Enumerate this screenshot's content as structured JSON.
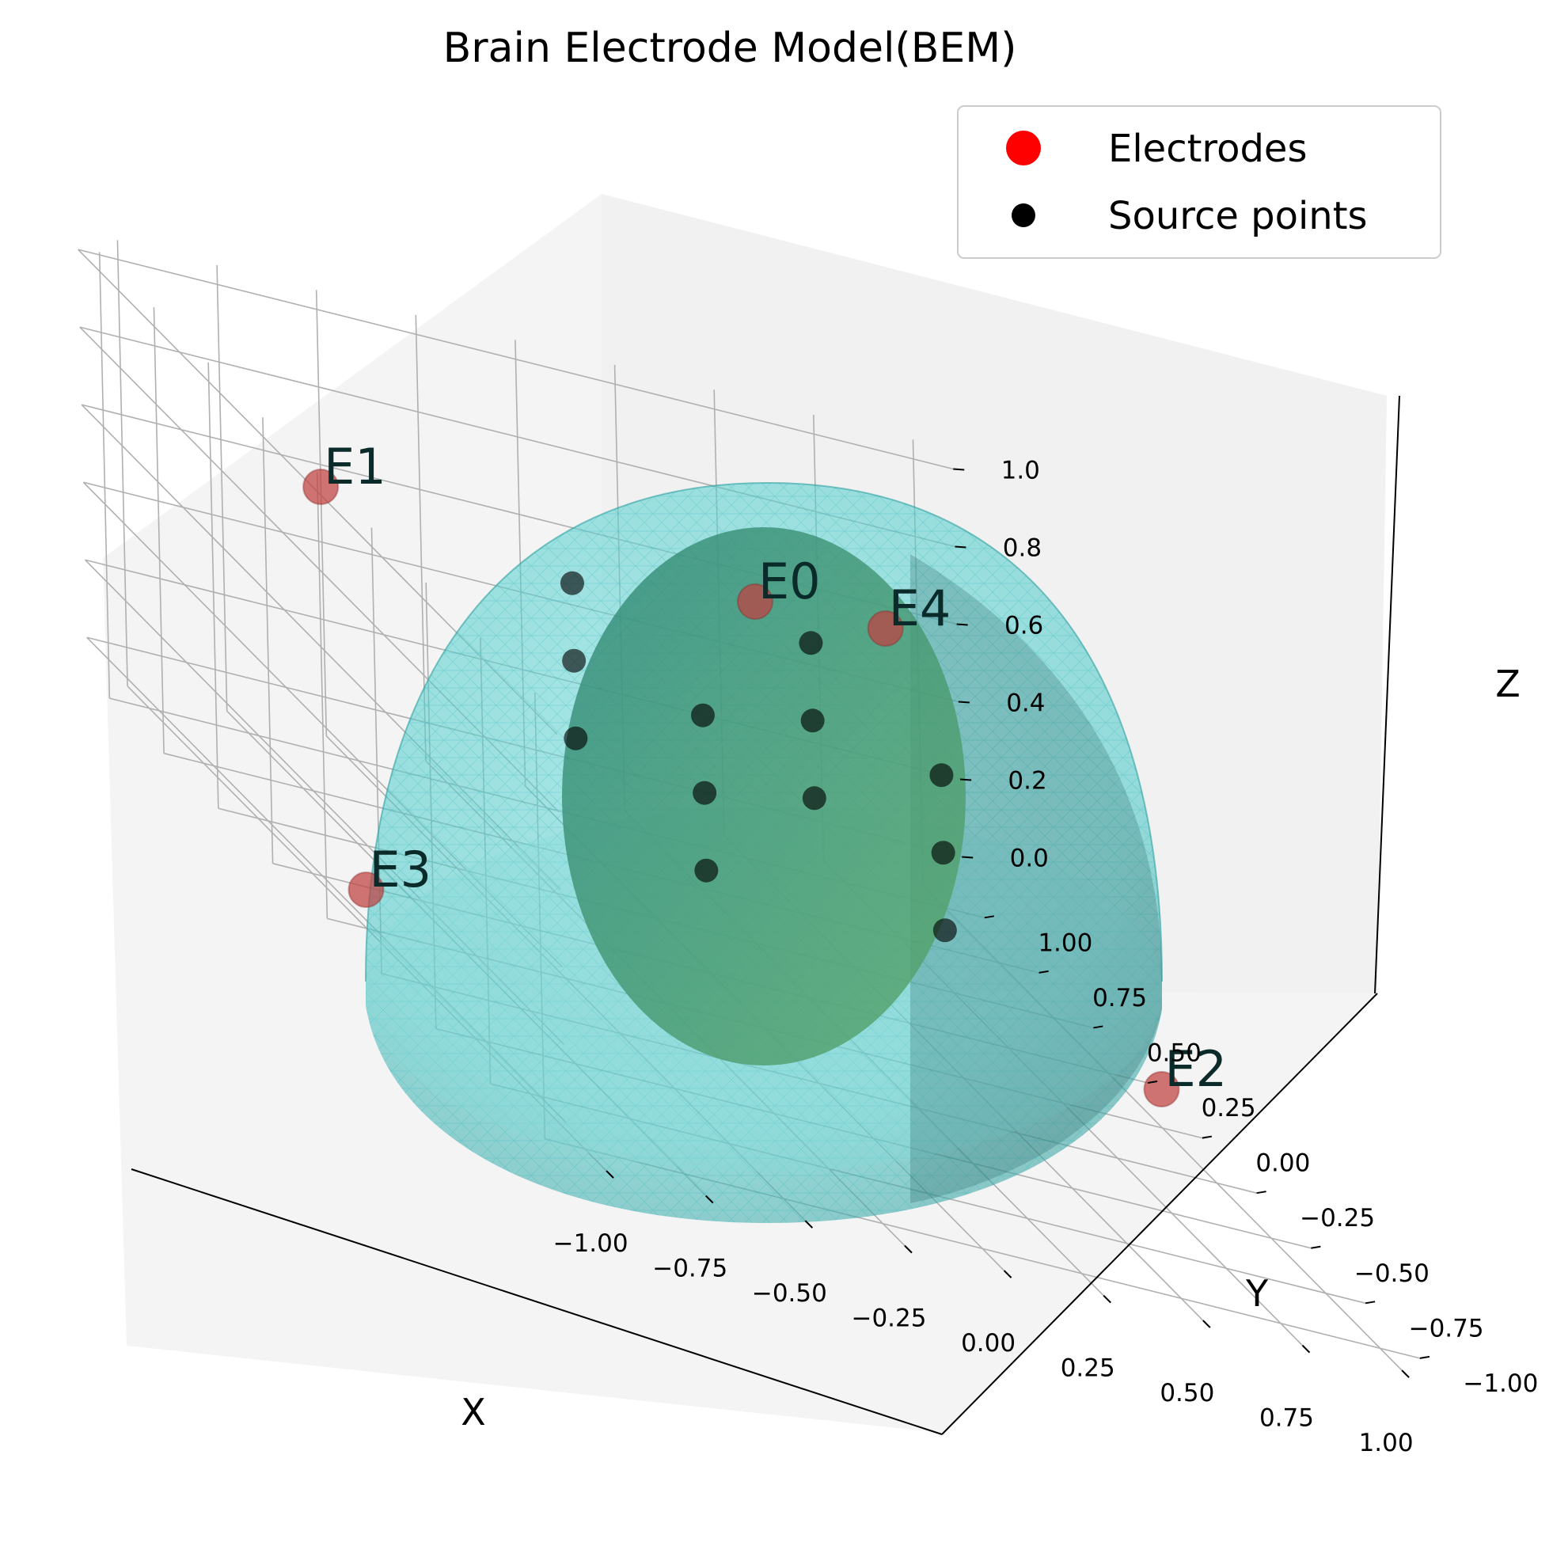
{
  "chart_data": {
    "type": "scatter",
    "title": "Brain Electrode Model(BEM)",
    "xlabel": "X",
    "ylabel": "Y",
    "zlabel": "Z",
    "xlim": [
      -1.1,
      1.1
    ],
    "ylim": [
      -1.1,
      1.1
    ],
    "zlim": [
      -0.1,
      1.05
    ],
    "xticks": [
      "−1.00",
      "−0.75",
      "−0.50",
      "−0.25",
      "0.00",
      "0.25",
      "0.50",
      "0.75",
      "1.00"
    ],
    "yticks": [
      "−1.00",
      "−0.75",
      "−0.50",
      "−0.25",
      "0.00",
      "0.25",
      "0.50",
      "0.75",
      "1.00"
    ],
    "zticks": [
      "0.0",
      "0.2",
      "0.4",
      "0.6",
      "0.8",
      "1.0"
    ],
    "grid": true,
    "legend_position": "top-right",
    "legend": [
      {
        "label": "Electrodes",
        "color": "#ff0000"
      },
      {
        "label": "Source points",
        "color": "#000000"
      }
    ],
    "surfaces": [
      {
        "name": "outer hemisphere",
        "shape": "hemisphere",
        "radius": 1.0,
        "color": "#40d0d0"
      },
      {
        "name": "inner ellipsoid",
        "shape": "ellipsoid",
        "color": "#4a9a5a"
      }
    ],
    "electrodes": [
      {
        "label": "E0",
        "x": 0.0,
        "y": 0.0,
        "z": 1.0
      },
      {
        "label": "E1",
        "x": -0.71,
        "y": 0.71,
        "z": 0.71
      },
      {
        "label": "E2",
        "x": 1.0,
        "y": 0.0,
        "z": 0.0
      },
      {
        "label": "E3",
        "x": -1.0,
        "y": 0.0,
        "z": 0.0
      },
      {
        "label": "E4",
        "x": 0.71,
        "y": 0.71,
        "z": 0.71
      }
    ],
    "source_points": [
      {
        "x": -0.3,
        "y": 0.3,
        "z": 0.8
      },
      {
        "x": -0.3,
        "y": 0.3,
        "z": 0.6
      },
      {
        "x": -0.3,
        "y": 0.3,
        "z": 0.4
      },
      {
        "x": -0.3,
        "y": -0.3,
        "z": 0.8
      },
      {
        "x": -0.3,
        "y": -0.3,
        "z": 0.6
      },
      {
        "x": -0.3,
        "y": -0.3,
        "z": 0.4
      },
      {
        "x": 0.3,
        "y": 0.3,
        "z": 0.8
      },
      {
        "x": 0.3,
        "y": 0.3,
        "z": 0.6
      },
      {
        "x": 0.3,
        "y": 0.3,
        "z": 0.4
      },
      {
        "x": 0.3,
        "y": -0.3,
        "z": 0.8
      },
      {
        "x": 0.3,
        "y": -0.3,
        "z": 0.6
      },
      {
        "x": 0.3,
        "y": -0.3,
        "z": 0.4
      }
    ]
  }
}
